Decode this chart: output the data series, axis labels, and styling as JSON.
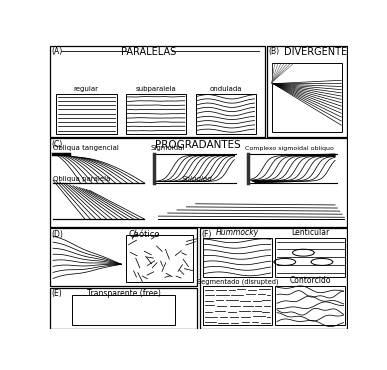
{
  "bg_color": "#ffffff",
  "line_color": "#000000",
  "gray_color": "#777777",
  "title_A": "PARALELAS",
  "title_B": "DIVERGENTE",
  "title_C": "PROGRADANTES",
  "label_regular": "regular",
  "label_subparalela": "subparalela",
  "label_ondulada": "ondulada",
  "label_ob_tang": "Obliqua tangencial",
  "label_sigmoidal": "Sigmoidal",
  "label_complexo": "Complexo sigmoidal obliquo",
  "label_ob_par": "Obliqua paralela",
  "label_shingled": "Shingled",
  "label_caotico": "Caótico",
  "label_transparente": "Transparente (free)",
  "label_hummocky": "Hummocky",
  "label_lenticular": "Lenticular",
  "label_segmentado": "Segmentado (disrupted)",
  "label_contorcido": "Contorcido"
}
